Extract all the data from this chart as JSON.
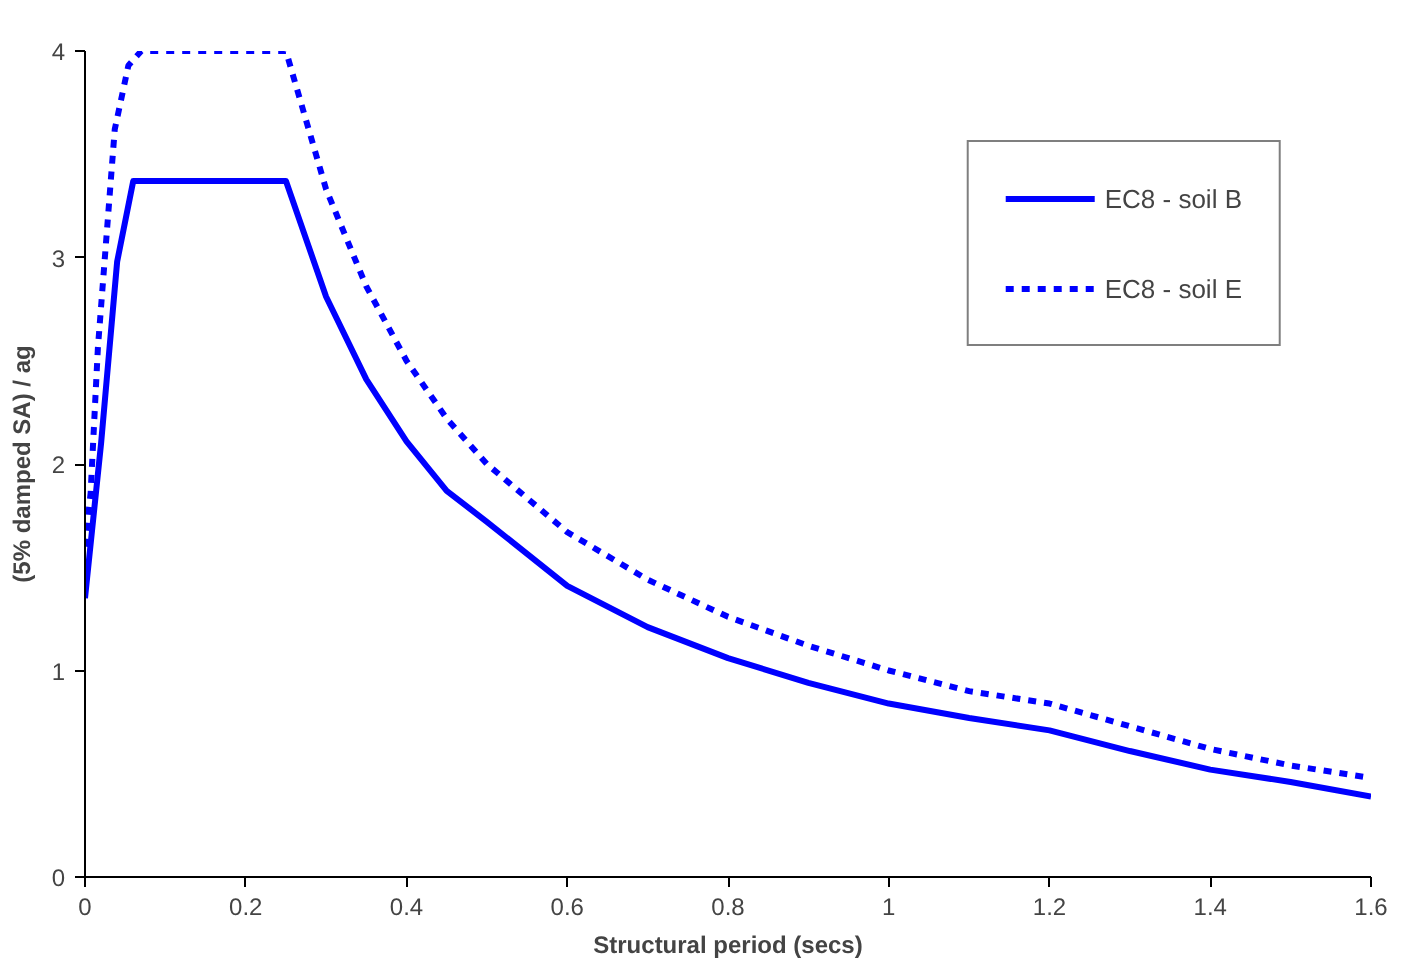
{
  "chart_data": {
    "type": "line",
    "xlabel": "Structural period (secs)",
    "ylabel": "(5% damped SA) / ag",
    "xlim": [
      0,
      1.6
    ],
    "ylim": [
      0,
      4
    ],
    "xticks": [
      0,
      0.2,
      0.4,
      0.6,
      0.8,
      1,
      1.2,
      1.4,
      1.6
    ],
    "yticks": [
      0,
      1,
      2,
      3,
      4
    ],
    "grid": false,
    "legend": "top right",
    "marker": "none",
    "series": [
      {
        "name": "EC8 - soil B",
        "color": "#0000ff",
        "line_style": "solid",
        "x": [
          0,
          0.02,
          0.04,
          0.06,
          0.25,
          0.3,
          0.35,
          0.4,
          0.45,
          0.5,
          0.6,
          0.7,
          0.8,
          0.9,
          1,
          1.1,
          1.2,
          1.3,
          1.4,
          1.5,
          1.6
        ],
        "values": [
          1.35,
          2.1,
          2.98,
          3.37,
          3.37,
          2.81,
          2.41,
          2.11,
          1.87,
          1.72,
          1.41,
          1.21,
          1.06,
          0.94,
          0.84,
          0.77,
          0.71,
          0.61,
          0.52,
          0.46,
          0.39
        ]
      },
      {
        "name": "EC8 - soil E",
        "color": "#0000ff",
        "line_style": "dashed",
        "x": [
          0,
          0.007,
          0.016,
          0.037,
          0.054,
          0.07,
          0.25,
          0.3,
          0.35,
          0.4,
          0.45,
          0.5,
          0.6,
          0.7,
          0.8,
          0.9,
          1,
          1.1,
          1.2,
          1.3,
          1.4,
          1.5,
          1.6
        ],
        "values": [
          1.6,
          1.86,
          2.56,
          3.62,
          3.93,
          4.0,
          4.0,
          3.33,
          2.86,
          2.5,
          2.22,
          2.0,
          1.67,
          1.44,
          1.26,
          1.12,
          1.0,
          0.9,
          0.84,
          0.73,
          0.62,
          0.54,
          0.48
        ]
      }
    ]
  }
}
